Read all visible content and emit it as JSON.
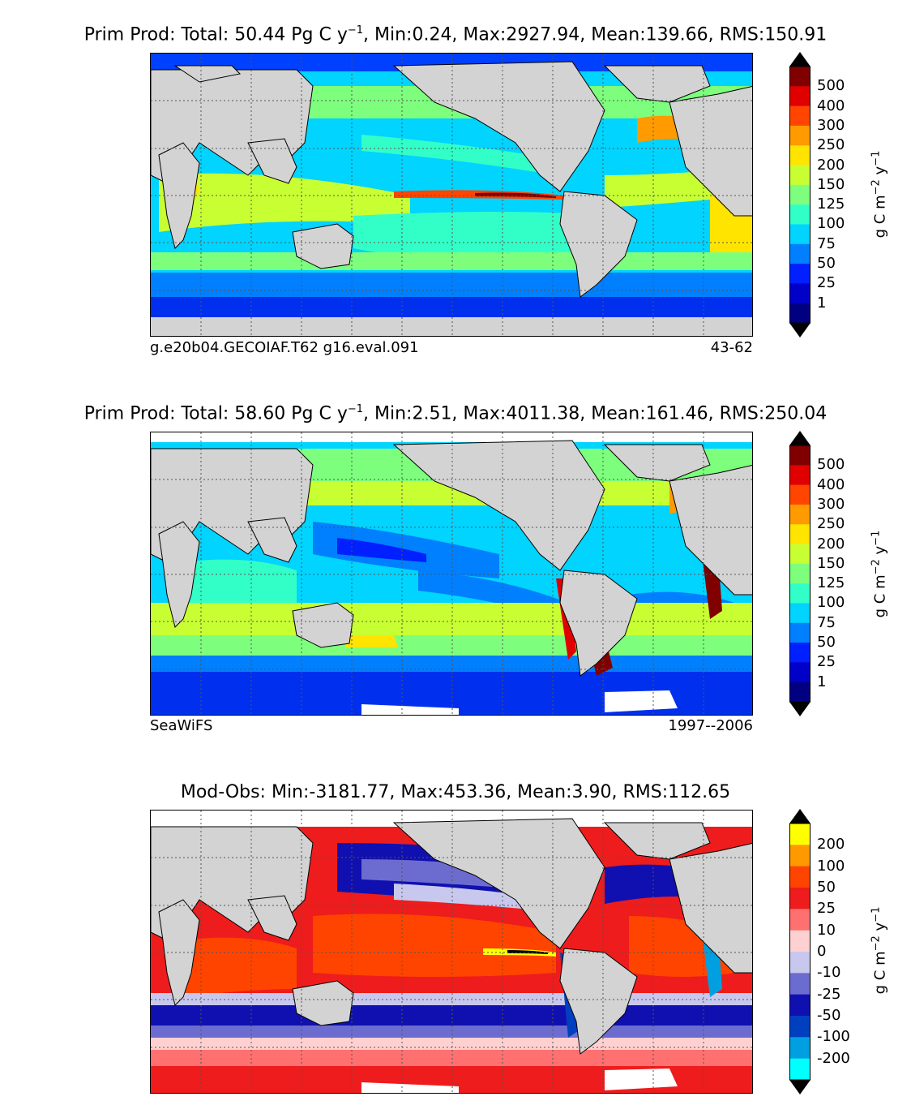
{
  "panels": [
    {
      "title_prefix": "Prim Prod: Total: 50.44 Pg C y",
      "title_exp": "−1",
      "title_suffix": ", Min:0.24, Max:2927.94, Mean:139.66, RMS:150.91",
      "left_label": "g.e20b04.GECOIAF.T62 g16.eval.091",
      "right_label": "43-62",
      "colorbar_ticks": [
        "500",
        "400",
        "300",
        "250",
        "200",
        "150",
        "125",
        "100",
        "75",
        "50",
        "25",
        "1"
      ],
      "colorbar_colors": [
        "#800000",
        "#e00000",
        "#ff4500",
        "#ff9a00",
        "#ffe400",
        "#c8ff32",
        "#7dff7d",
        "#32ffc8",
        "#00d4ff",
        "#0080ff",
        "#0020ff",
        "#0000c8",
        "#000080"
      ]
    },
    {
      "title_prefix": "Prim Prod: Total: 58.60 Pg C y",
      "title_exp": "−1",
      "title_suffix": ", Min:2.51, Max:4011.38, Mean:161.46, RMS:250.04",
      "left_label": "SeaWiFS",
      "right_label": "1997--2006",
      "colorbar_ticks": [
        "500",
        "400",
        "300",
        "250",
        "200",
        "150",
        "125",
        "100",
        "75",
        "50",
        "25",
        "1"
      ],
      "colorbar_colors": [
        "#800000",
        "#e00000",
        "#ff4500",
        "#ff9a00",
        "#ffe400",
        "#c8ff32",
        "#7dff7d",
        "#32ffc8",
        "#00d4ff",
        "#0080ff",
        "#0020ff",
        "#0000c8",
        "#000080"
      ]
    },
    {
      "title_prefix": "Mod-Obs: Min:-3181.77, Max:453.36, Mean:3.90, RMS:112.65",
      "title_exp": "",
      "title_suffix": "",
      "left_label": "",
      "right_label": "",
      "colorbar_ticks": [
        "200",
        "100",
        "50",
        "25",
        "10",
        "0",
        "-10",
        "-25",
        "-50",
        "-100",
        "-200"
      ],
      "colorbar_colors": [
        "#ffff00",
        "#ff9900",
        "#ff4400",
        "#ee1c1c",
        "#ff7070",
        "#ffd0d0",
        "#c8c8ee",
        "#6c6cd0",
        "#1010b0",
        "#0040c0",
        "#00a0e0",
        "#00ffff"
      ]
    }
  ],
  "unit_label": {
    "prefix": "g C m",
    "exp1": "−2",
    "mid": " y",
    "exp2": "−1"
  },
  "colors": {
    "land": "#d3d3d3",
    "grid": "#555555"
  }
}
